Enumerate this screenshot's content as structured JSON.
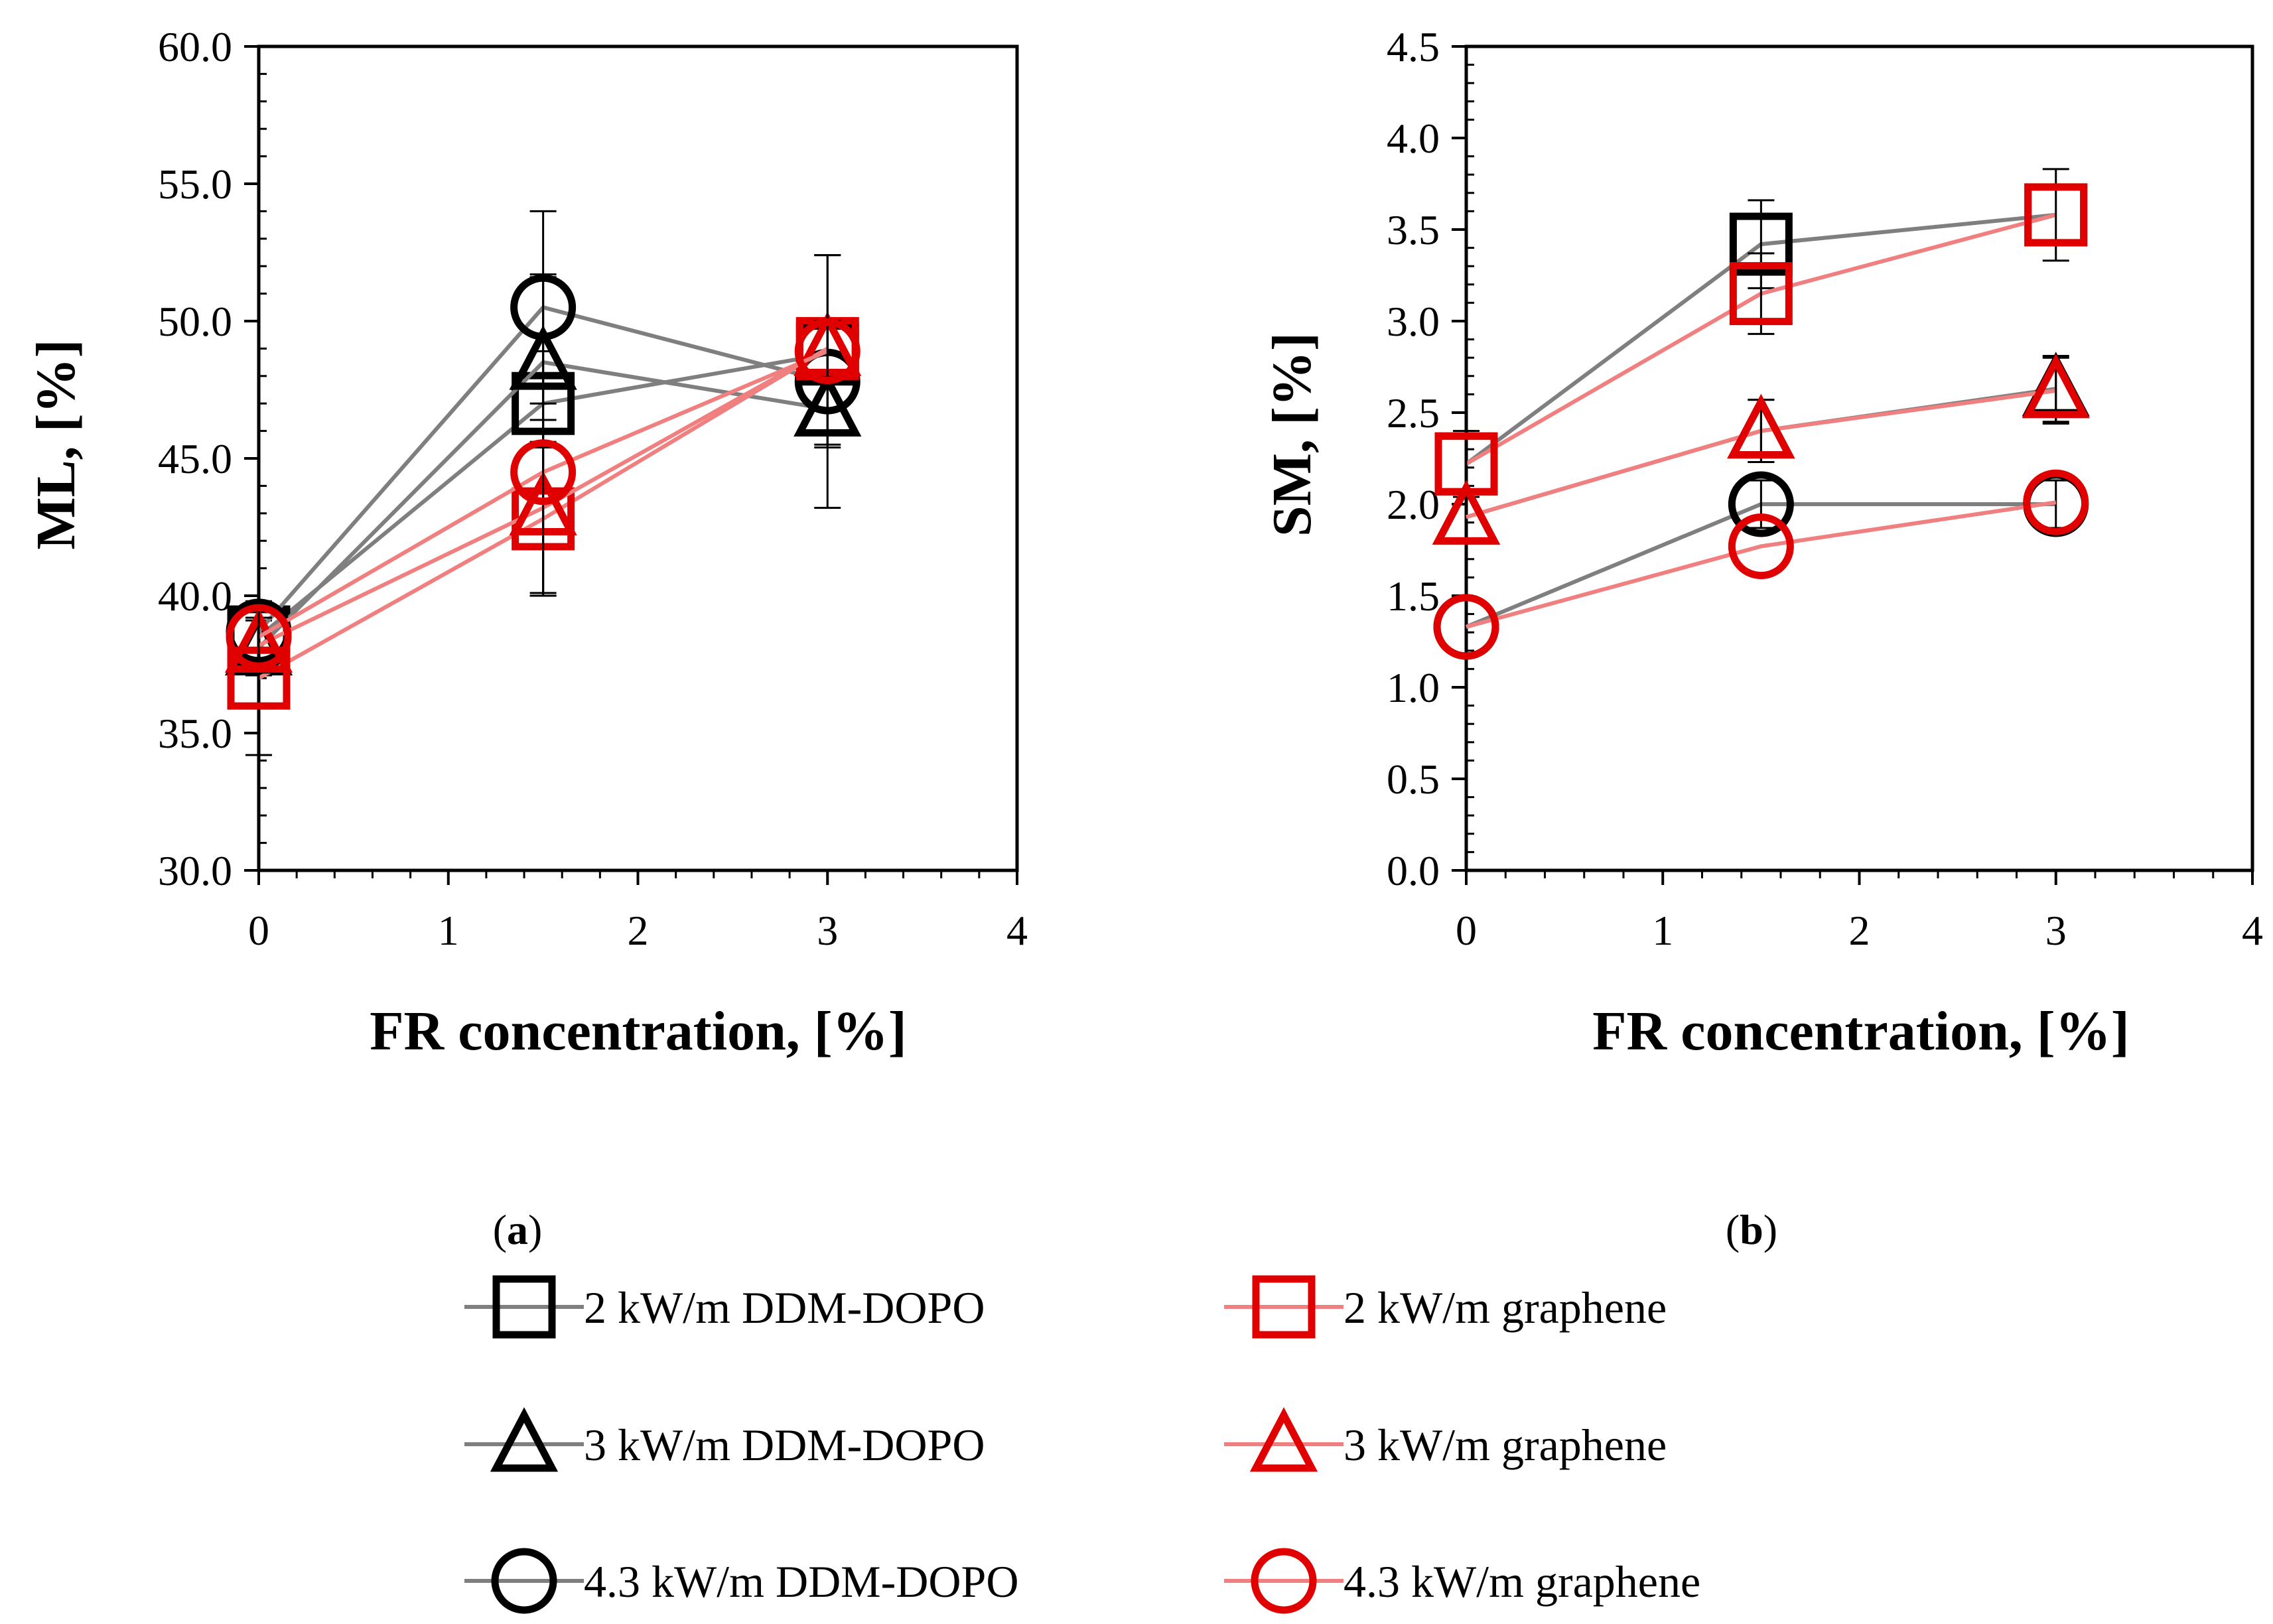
{
  "colors": {
    "ddm_line": "#7f7f7f",
    "ddm_marker": "#000000",
    "graphene_line": "#f08080",
    "graphene_marker": "#e00000",
    "axis": "#000000"
  },
  "legend": {
    "items": [
      {
        "label": "2 kW/m  DDM-DOPO",
        "marker": "square",
        "family": "ddm"
      },
      {
        "label": "2 kW/m  graphene",
        "marker": "square",
        "family": "graphene"
      },
      {
        "label": "3 kW/m  DDM-DOPO",
        "marker": "triangle",
        "family": "ddm"
      },
      {
        "label": "3 kW/m  graphene",
        "marker": "triangle",
        "family": "graphene"
      },
      {
        "label": "4.3 kW/m  DDM-DOPO",
        "marker": "circle",
        "family": "ddm"
      },
      {
        "label": "4.3 kW/m  graphene",
        "marker": "circle",
        "family": "graphene"
      }
    ]
  },
  "chart_data": [
    {
      "type": "line",
      "panel_label": {
        "open": "(",
        "letter": "a",
        "close": ")"
      },
      "xlabel": "FR concentration, [%]",
      "ylabel": "ML, [%]",
      "xlim": [
        0,
        4
      ],
      "ylim": [
        30,
        60
      ],
      "xticks": [
        "0",
        "1",
        "2",
        "3",
        "4"
      ],
      "yticks": [
        "30.0",
        "35.0",
        "40.0",
        "45.0",
        "50.0",
        "55.0",
        "60.0"
      ],
      "x": [
        0,
        1.5,
        3
      ],
      "series": [
        {
          "name": "2 kW/m  DDM-DOPO",
          "marker": "square",
          "family": "ddm",
          "values": [
            38.5,
            47.0,
            48.8
          ],
          "errors": [
            0.9,
            4.7,
            1.0
          ]
        },
        {
          "name": "3 kW/m  DDM-DOPO",
          "marker": "triangle",
          "family": "ddm",
          "values": [
            38.1,
            48.5,
            46.8
          ],
          "errors": [
            1.0,
            3.1,
            1.3
          ]
        },
        {
          "name": "4.3 kW/m  DDM-DOPO",
          "marker": "circle",
          "family": "ddm",
          "values": [
            38.7,
            50.5,
            47.8
          ],
          "errors": [
            1.0,
            3.5,
            4.6
          ]
        },
        {
          "name": "2 kW/m  graphene",
          "marker": "square",
          "family": "graphene",
          "values": [
            37.0,
            42.8,
            49.0
          ],
          "errors": [
            2.8,
            2.8,
            1.0
          ]
        },
        {
          "name": "3 kW/m  graphene",
          "marker": "triangle",
          "family": "graphene",
          "values": [
            38.2,
            43.2,
            49.0
          ],
          "errors": [
            1.0,
            3.2,
            1.0
          ]
        },
        {
          "name": "4.3 kW/m  graphene",
          "marker": "circle",
          "family": "graphene",
          "values": [
            38.5,
            44.5,
            48.9
          ],
          "errors": [
            1.0,
            4.4,
            3.5
          ]
        }
      ]
    },
    {
      "type": "line",
      "panel_label": {
        "open": "(",
        "letter": "b",
        "close": ")"
      },
      "xlabel": "FR concentration, [%]",
      "ylabel": "SM, [%]",
      "xlim": [
        0,
        4
      ],
      "ylim": [
        0,
        4.5
      ],
      "xticks": [
        "0",
        "1",
        "2",
        "3",
        "4"
      ],
      "yticks": [
        "0.0",
        "0.5",
        "1.0",
        "1.5",
        "2.0",
        "2.5",
        "3.0",
        "3.5",
        "4.0",
        "4.5"
      ],
      "x": [
        0,
        1.5,
        3
      ],
      "series": [
        {
          "name": "2 kW/m  DDM-DOPO",
          "marker": "square",
          "family": "ddm",
          "values": [
            2.22,
            3.42,
            3.58
          ],
          "errors": [
            0.0,
            0.24,
            0.0
          ]
        },
        {
          "name": "3 kW/m  DDM-DOPO",
          "marker": "triangle",
          "family": "ddm",
          "values": [
            1.93,
            2.4,
            2.63
          ],
          "errors": [
            0.0,
            0.17,
            0.18
          ]
        },
        {
          "name": "4.3 kW/m  DDM-DOPO",
          "marker": "circle",
          "family": "ddm",
          "values": [
            1.33,
            2.0,
            2.0
          ],
          "errors": [
            0.0,
            0.13,
            0.13
          ]
        },
        {
          "name": "2 kW/m  graphene",
          "marker": "square",
          "family": "graphene",
          "values": [
            2.22,
            3.15,
            3.58
          ],
          "errors": [
            0.18,
            0.22,
            0.25
          ]
        },
        {
          "name": "3 kW/m  graphene",
          "marker": "triangle",
          "family": "graphene",
          "values": [
            1.93,
            2.4,
            2.62
          ],
          "errors": [
            0.0,
            0.17,
            0.18
          ]
        },
        {
          "name": "4.3 kW/m  graphene",
          "marker": "circle",
          "family": "graphene",
          "values": [
            1.33,
            1.77,
            2.01
          ],
          "errors": [
            0.0,
            0.0,
            0.0
          ]
        }
      ]
    }
  ]
}
